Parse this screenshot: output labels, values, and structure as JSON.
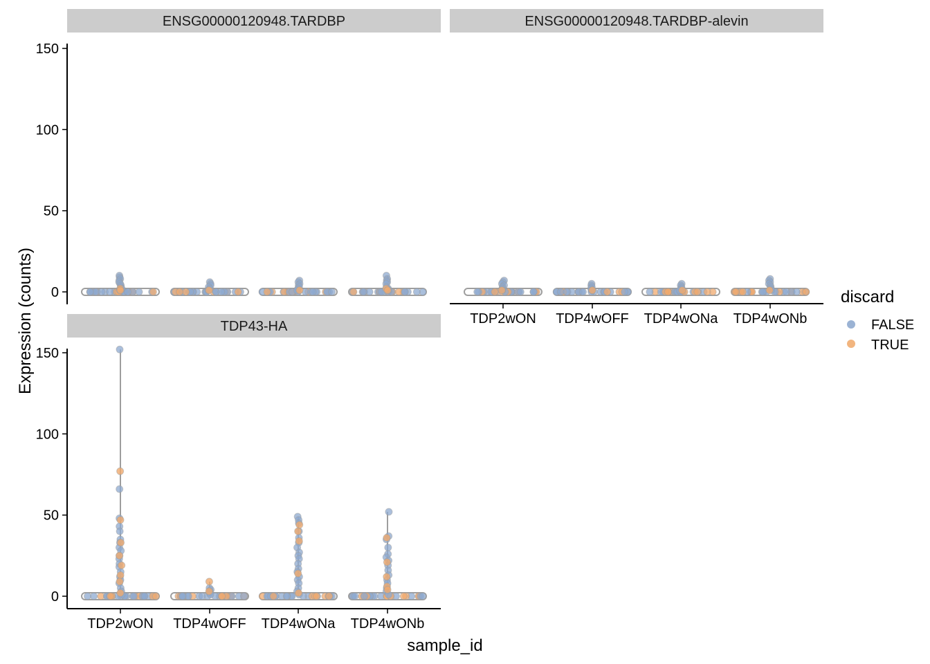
{
  "chart_data": {
    "type": "scatter",
    "subtype": "violin-jitter-facets",
    "xlabel": "sample_id",
    "ylabel": "Expression (counts)",
    "categories": [
      "TDP2wON",
      "TDP4wOFF",
      "TDP4wONa",
      "TDP4wONb"
    ],
    "y_ticks": [
      0,
      50,
      100,
      150
    ],
    "ylim": [
      -7,
      160
    ],
    "grid": false,
    "legend": {
      "title": "discard",
      "position": "right",
      "entries": [
        {
          "label": "FALSE",
          "color": "#9bb3d4"
        },
        {
          "label": "TRUE",
          "color": "#f2b57f"
        }
      ]
    },
    "colors": {
      "strip_bg": "#cccccc",
      "violin_outline": "#9e9e9e",
      "point_false": "#8eaad0",
      "point_true": "#f0aa6e"
    },
    "facets": [
      {
        "title": "ENSG00000120948.TARDBP",
        "max_values": [
          10,
          6,
          7,
          10
        ],
        "upper_points": [
          {
            "category": "TDP2wON",
            "false": [
              10,
              9,
              8,
              7,
              6,
              5,
              4,
              3,
              2,
              1
            ],
            "true": [
              2,
              1
            ]
          },
          {
            "category": "TDP4wOFF",
            "false": [
              6,
              5,
              4,
              3,
              2,
              1
            ],
            "true": [
              1
            ]
          },
          {
            "category": "TDP4wONa",
            "false": [
              7,
              6,
              5,
              4,
              3,
              2,
              1
            ],
            "true": [
              1
            ]
          },
          {
            "category": "TDP4wONb",
            "false": [
              10,
              8,
              7,
              6,
              5,
              3,
              2,
              1
            ],
            "true": [
              2,
              1
            ]
          }
        ]
      },
      {
        "title": "ENSG00000120948.TARDBP-alevin",
        "max_values": [
          7,
          5,
          5,
          8
        ],
        "upper_points": [
          {
            "category": "TDP2wON",
            "false": [
              7,
              6,
              5,
              4,
              3,
              2,
              1
            ],
            "true": [
              1
            ]
          },
          {
            "category": "TDP4wOFF",
            "false": [
              5,
              4,
              3,
              2,
              1
            ],
            "true": [
              1
            ]
          },
          {
            "category": "TDP4wONa",
            "false": [
              5,
              4,
              3,
              2,
              1
            ],
            "true": [
              1
            ]
          },
          {
            "category": "TDP4wONb",
            "false": [
              8,
              7,
              6,
              5,
              4,
              3,
              2,
              1
            ],
            "true": [
              1
            ]
          }
        ]
      },
      {
        "title": "TDP43-HA",
        "max_values": [
          152,
          9,
          49,
          52
        ],
        "upper_points": [
          {
            "category": "TDP2wON",
            "false": [
              152,
              66,
              48,
              43,
              40,
              35,
              33,
              30,
              28,
              25,
              23,
              20,
              18,
              15,
              12,
              10,
              8,
              5,
              3,
              1
            ],
            "true": [
              77,
              47,
              33,
              25,
              19,
              13,
              9,
              2
            ]
          },
          {
            "category": "TDP4wOFF",
            "false": [
              5,
              4,
              3,
              2,
              1
            ],
            "true": [
              9,
              3
            ]
          },
          {
            "category": "TDP4wONa",
            "false": [
              49,
              47,
              45,
              40,
              36,
              33,
              30,
              27,
              25,
              23,
              20,
              17,
              15,
              12,
              10,
              8,
              5,
              3,
              1
            ],
            "true": [
              44,
              40,
              34,
              14,
              2
            ]
          },
          {
            "category": "TDP4wONb",
            "false": [
              52,
              37,
              35,
              30,
              26,
              24,
              22,
              19,
              16,
              13,
              10,
              8,
              5,
              3,
              1
            ],
            "true": [
              36,
              21,
              12,
              6,
              4
            ]
          }
        ]
      }
    ]
  }
}
